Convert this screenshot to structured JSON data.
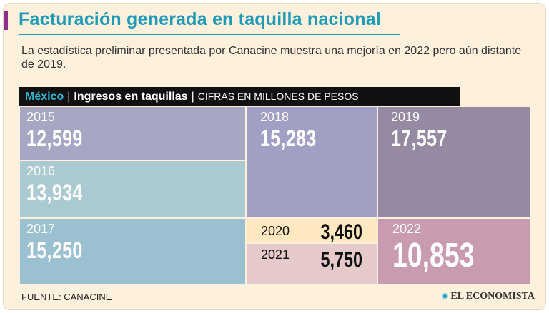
{
  "header": {
    "title": "Facturación generada en taquilla nacional",
    "subtitle": "La estadística preliminar presentada por Canacine muestra una mejoría en 2022 pero aún distante de 2019."
  },
  "label_bar": {
    "country": "México",
    "separator": "|",
    "metric": "Ingresos en taquillas",
    "units": "CIFRAS EN MILLONES DE PESOS"
  },
  "chart_data": {
    "type": "treemap",
    "units": "CIFRAS EN MILLONES DE PESOS",
    "items": [
      {
        "year": "2015",
        "label": "12,599",
        "value": 12599,
        "color": "#a6a8c3"
      },
      {
        "year": "2016",
        "label": "13,934",
        "value": 13934,
        "color": "#aac9d1"
      },
      {
        "year": "2017",
        "label": "15,250",
        "value": 15250,
        "color": "#9bc1d1"
      },
      {
        "year": "2018",
        "label": "15,283",
        "value": 15283,
        "color": "#a29fc4"
      },
      {
        "year": "2019",
        "label": "17,557",
        "value": 17557,
        "color": "#958aa2"
      },
      {
        "year": "2020",
        "label": "3,460",
        "value": 3460,
        "color": "#fde8bf"
      },
      {
        "year": "2021",
        "label": "5,750",
        "value": 5750,
        "color": "#e6c9ca"
      },
      {
        "year": "2022",
        "label": "10,853",
        "value": 10853,
        "color": "#c99bb0"
      }
    ]
  },
  "footer": {
    "source": "FUENTE: CANACINE",
    "logo": "EL ECONOMISTA"
  }
}
